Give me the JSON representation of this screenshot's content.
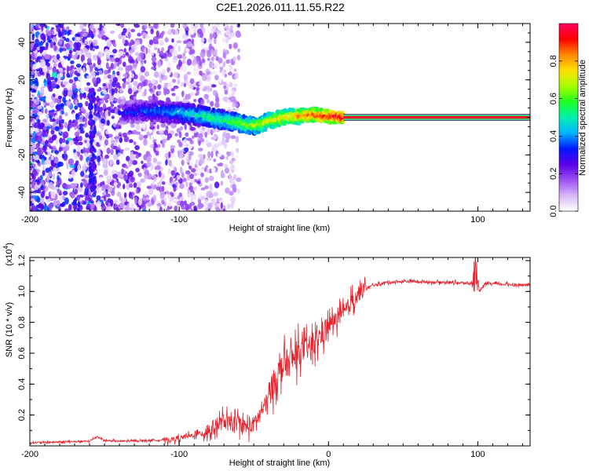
{
  "chart_data": [
    {
      "type": "heatmap",
      "title": "C2E1.2026.011.11.55.R22",
      "xlabel": "Height of straight line (km)",
      "ylabel": "Frequency (Hz)",
      "xlim": [
        -200,
        135
      ],
      "ylim": [
        -50,
        50
      ],
      "xticks": [
        -200,
        -100,
        0,
        100
      ],
      "xtick_labels": [
        "-200",
        "-100",
        "",
        "100"
      ],
      "yticks": [
        -40,
        -20,
        0,
        20,
        40
      ],
      "ytick_labels": [
        "-40",
        "-20",
        "0",
        "20",
        "40"
      ],
      "colorbar": {
        "label": "Normalized spectral amplitude",
        "range": [
          0,
          1
        ],
        "ticks": [
          0.0,
          0.2,
          0.4,
          0.6,
          0.8
        ],
        "tick_labels": [
          "0.0",
          "0.2",
          "0.4",
          "0.6",
          "0.8"
        ],
        "colormap": [
          "#ffffff",
          "#d8b8f8",
          "#9a50f0",
          "#5a00e8",
          "#0018ff",
          "#00b4ff",
          "#00f0b0",
          "#20ff20",
          "#a8ff00",
          "#ffe000",
          "#ff8800",
          "#ff0000",
          "#ff0060"
        ]
      },
      "ridge": {
        "x": [
          -140,
          -130,
          -120,
          -110,
          -100,
          -90,
          -80,
          -70,
          -60,
          -55,
          -50,
          -45,
          -40,
          -35,
          -30,
          -25,
          -20,
          -15,
          -10,
          -5,
          0,
          5,
          10,
          20,
          50,
          100,
          135
        ],
        "y": [
          2.5,
          3,
          3.5,
          3,
          2.5,
          1.5,
          0,
          -1.5,
          -3,
          -4,
          -4.5,
          -3.5,
          -2,
          -1,
          0,
          0.5,
          0.5,
          1,
          1.5,
          0.8,
          0.5,
          0.3,
          0,
          0,
          0,
          0,
          0
        ]
      },
      "stable_band_start_x": 10
    },
    {
      "type": "line",
      "title": "",
      "xlabel": "Height of straight line (km)",
      "ylabel": "SNR (10 * v/v)",
      "y_multiplier": "(x10^4)",
      "multiplier_base": "(x10",
      "multiplier_exp": "4",
      "multiplier_close": ")",
      "xlim": [
        -200,
        135
      ],
      "ylim": [
        0,
        1.22
      ],
      "xticks": [
        -200,
        -100,
        0,
        100
      ],
      "xtick_labels": [
        "-200",
        "-100",
        "0",
        "100"
      ],
      "yticks": [
        0.2,
        0.4,
        0.6,
        0.8,
        1.0,
        1.2
      ],
      "ytick_labels": [
        "0.2",
        "0.4",
        "0.6",
        "0.8",
        "1.0",
        "1.2"
      ],
      "series": [
        {
          "name": "SNR",
          "color": "#e8202a",
          "x": [
            -200,
            -180,
            -160,
            -155,
            -150,
            -140,
            -120,
            -105,
            -100,
            -90,
            -80,
            -75,
            -70,
            -65,
            -60,
            -55,
            -50,
            -45,
            -40,
            -35,
            -30,
            -25,
            -20,
            -15,
            -10,
            -5,
            0,
            5,
            10,
            15,
            20,
            25,
            30,
            40,
            50,
            60,
            70,
            80,
            90,
            95,
            97,
            99,
            101,
            105,
            110,
            120,
            135
          ],
          "y": [
            0.02,
            0.025,
            0.03,
            0.06,
            0.035,
            0.03,
            0.035,
            0.04,
            0.05,
            0.07,
            0.1,
            0.13,
            0.16,
            0.14,
            0.15,
            0.12,
            0.14,
            0.22,
            0.32,
            0.45,
            0.52,
            0.55,
            0.6,
            0.63,
            0.65,
            0.72,
            0.78,
            0.82,
            0.85,
            0.93,
            0.99,
            1.02,
            1.04,
            1.06,
            1.065,
            1.065,
            1.06,
            1.06,
            1.055,
            1.05,
            1.08,
            1.15,
            1.0,
            1.045,
            1.05,
            1.045,
            1.04
          ]
        }
      ]
    }
  ]
}
